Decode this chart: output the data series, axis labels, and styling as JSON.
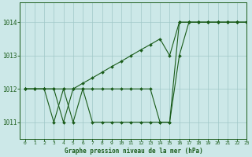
{
  "title": "Graphe pression niveau de la mer (hPa)",
  "xlim": [
    -0.5,
    23
  ],
  "ylim": [
    1010.5,
    1014.6
  ],
  "yticks": [
    1011,
    1012,
    1013,
    1014
  ],
  "xticks": [
    0,
    1,
    2,
    3,
    4,
    5,
    6,
    7,
    8,
    9,
    10,
    11,
    12,
    13,
    14,
    15,
    16,
    17,
    18,
    19,
    20,
    21,
    22,
    23
  ],
  "bg_color": "#cce8e8",
  "grid_color": "#a0c8c8",
  "line_color": "#1a5c1a",
  "line1_x": [
    0,
    1,
    2,
    3,
    4,
    5,
    6,
    7,
    8,
    9,
    10,
    11,
    12,
    13,
    14,
    15,
    16,
    17,
    18,
    19,
    20,
    21,
    22,
    23
  ],
  "line1_y": [
    1012,
    1012,
    1012,
    1012,
    1011,
    1012,
    1012,
    1012,
    1012,
    1012,
    1012,
    1012,
    1012,
    1012,
    1011,
    1011,
    1014,
    1014,
    1014,
    1014,
    1014,
    1014,
    1014,
    1014
  ],
  "line2_x": [
    0,
    1,
    2,
    3,
    4,
    5,
    6,
    7,
    8,
    9,
    10,
    11,
    12,
    13,
    14,
    15,
    16,
    17,
    18,
    19,
    20,
    21,
    22,
    23
  ],
  "line2_y": [
    1012,
    1012,
    1012,
    1011,
    1012,
    1011,
    1012,
    1011,
    1011,
    1011,
    1011,
    1011,
    1011,
    1011,
    1011,
    1011,
    1013,
    1014,
    1014,
    1014,
    1014,
    1014,
    1014,
    1014
  ],
  "line3_x": [
    0,
    1,
    2,
    3,
    4,
    5,
    6,
    7,
    8,
    9,
    10,
    11,
    12,
    13,
    14,
    15,
    16,
    17,
    18,
    19,
    20,
    21,
    22,
    23
  ],
  "line3_y": [
    1012,
    1012,
    1012,
    1012,
    1012,
    1012,
    1012.17,
    1012.33,
    1012.5,
    1012.67,
    1012.83,
    1013.0,
    1013.17,
    1013.33,
    1013.5,
    1013.0,
    1014,
    1014,
    1014,
    1014,
    1014,
    1014,
    1014,
    1014
  ]
}
